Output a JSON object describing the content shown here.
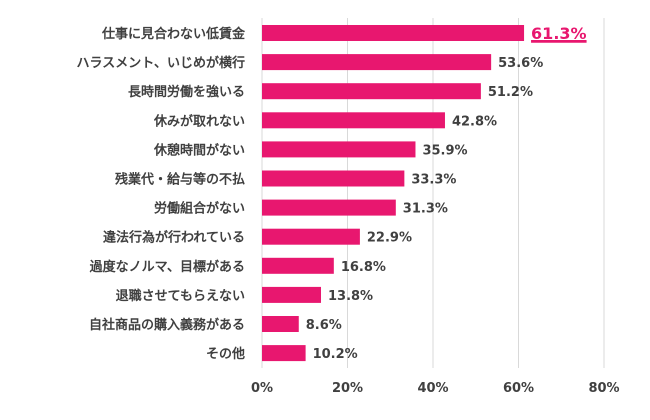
{
  "chart_data": {
    "type": "bar",
    "orientation": "horizontal",
    "categories": [
      "仕事に見合わない低賃金",
      "ハラスメント、いじめが横行",
      "長時間労働を強いる",
      "休みが取れない",
      "休憩時間がない",
      "残業代・給与等の不払",
      "労働組合がない",
      "違法行為が行われている",
      "過度なノルマ、目標がある",
      "退職させてもらえない",
      "自社商品の購入義務がある",
      "その他"
    ],
    "values": [
      61.3,
      53.6,
      51.2,
      42.8,
      35.9,
      33.3,
      31.3,
      22.9,
      16.8,
      13.8,
      8.6,
      10.2
    ],
    "value_labels": [
      "61.3%",
      "53.6%",
      "51.2%",
      "42.8%",
      "35.9%",
      "33.3%",
      "31.3%",
      "22.9%",
      "16.8%",
      "13.8%",
      "8.6%",
      "10.2%"
    ],
    "highlight_index": 0,
    "xlim": [
      0,
      80
    ],
    "x_ticks": [
      0,
      20,
      40,
      60,
      80
    ],
    "x_tick_labels": [
      "0%",
      "20%",
      "40%",
      "60%",
      "80%"
    ],
    "grid": "vertical",
    "legend": "none",
    "title": "",
    "xlabel": "",
    "ylabel": "",
    "colors": {
      "bar": "#e8176f",
      "highlight_label": "#e8176f",
      "text": "#404040",
      "grid": "#d9d9d9"
    }
  }
}
